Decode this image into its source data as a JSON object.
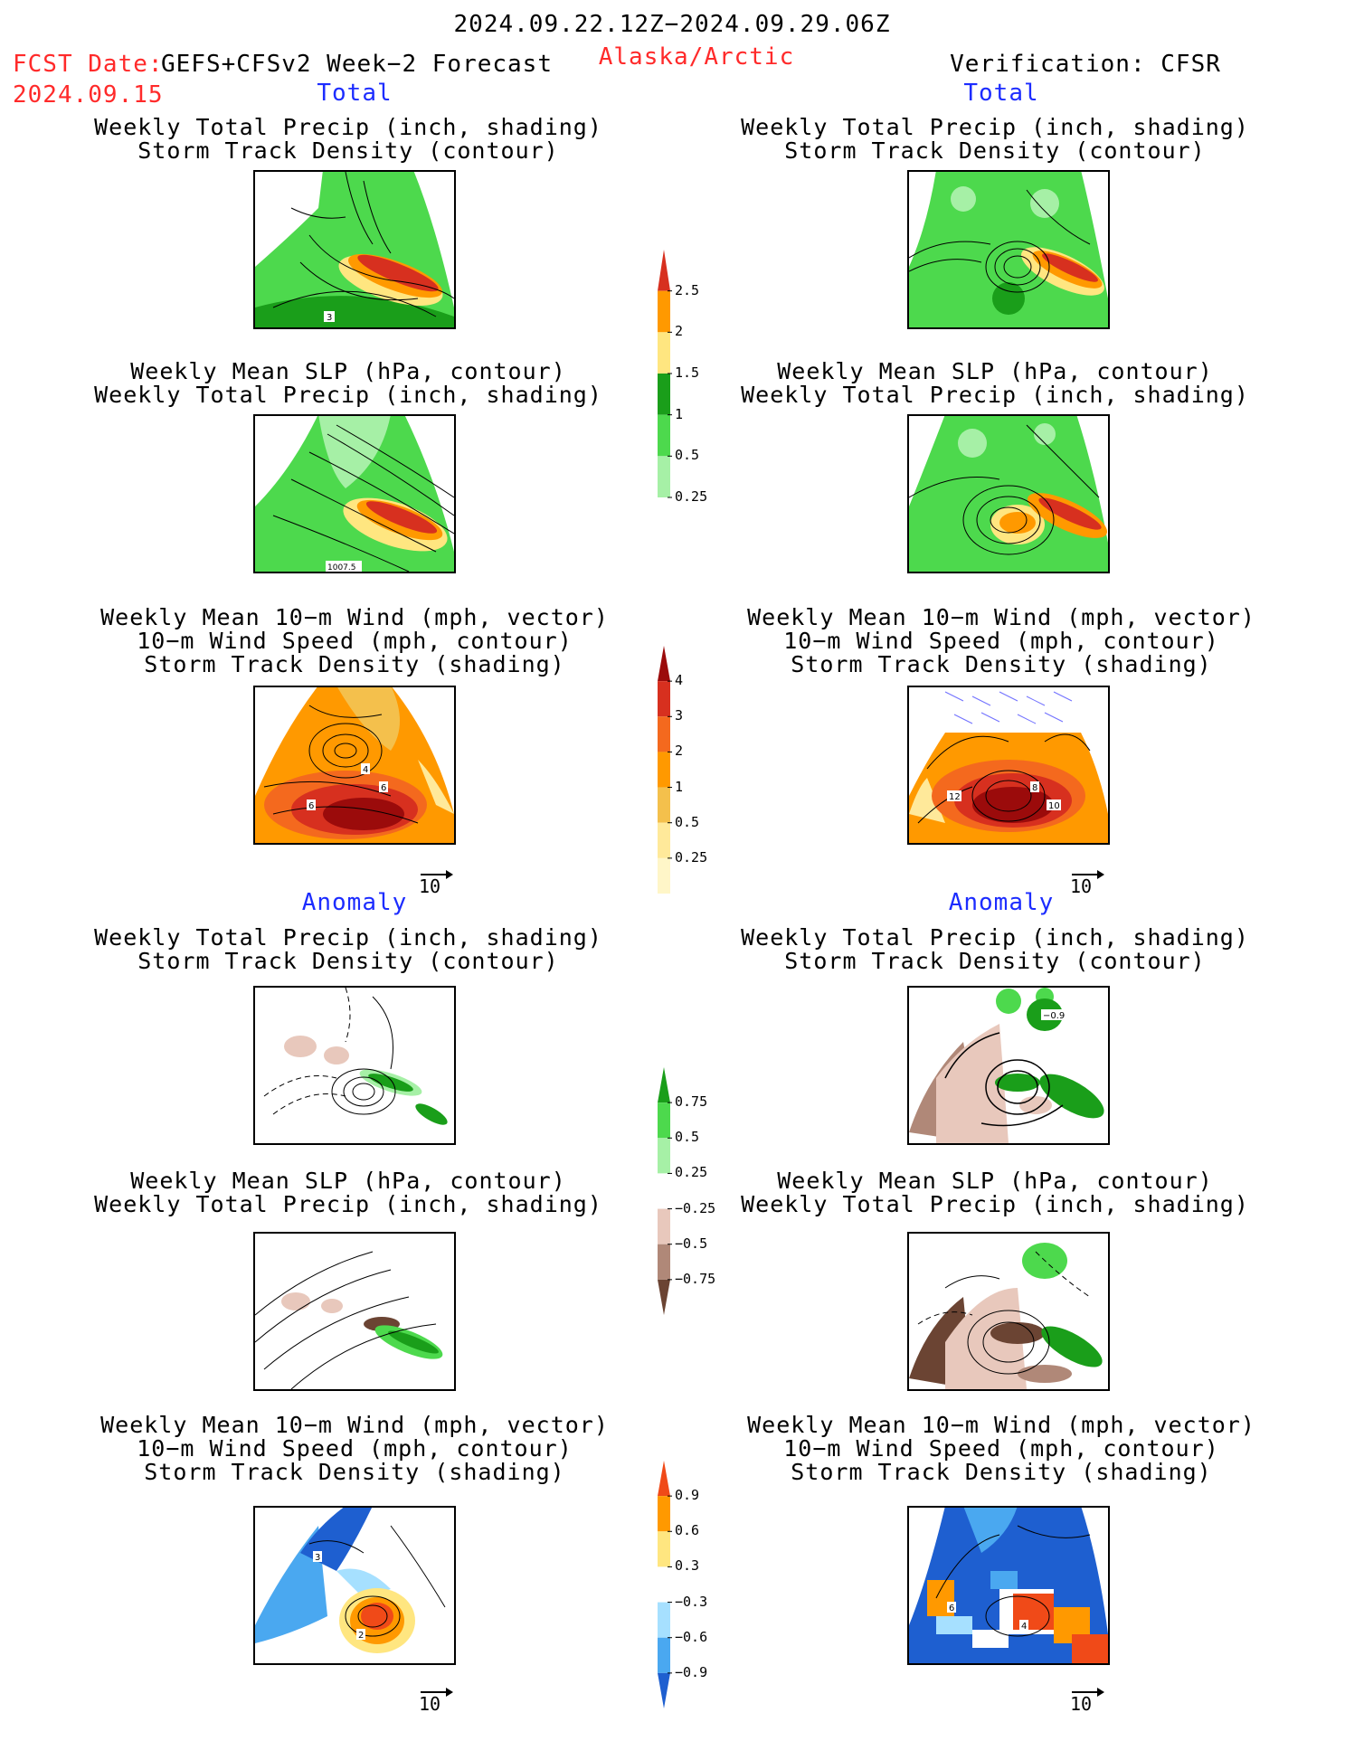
{
  "header": {
    "date_range": "2024.09.22.12Z−2024.09.29.06Z",
    "fcst_label": "FCST Date:",
    "fcst_model": "GEFS+CFSv2 Week−2 Forecast",
    "fcst_date": "2024.09.15",
    "region": "Alaska/Arctic",
    "verification": "Verification: CFSR"
  },
  "sections": {
    "total_left": "Total",
    "total_right": "Total",
    "anomaly_left": "Anomaly",
    "anomaly_right": "Anomaly"
  },
  "panel_titles": {
    "precip_track": [
      "Weekly Total Precip (inch, shading)",
      "Storm Track Density (contour)"
    ],
    "slp_precip": [
      "Weekly Mean SLP (hPa, contour)",
      "Weekly Total Precip (inch, shading)"
    ],
    "wind_track": [
      "Weekly Mean 10−m Wind (mph, vector)",
      "10−m Wind Speed (mph, contour)",
      "Storm Track Density (shading)"
    ]
  },
  "vector_reference": "10",
  "colorbars": {
    "precip_total": {
      "levels": [
        "2.5",
        "2",
        "1.5",
        "1",
        "0.5",
        "0.25"
      ],
      "colors": [
        "#d7301f",
        "#ff9900",
        "#ffe680",
        "#1a9e1a",
        "#4dd94d",
        "#a6f0a6"
      ]
    },
    "track_total": {
      "levels": [
        "4",
        "3",
        "2",
        "1",
        "0.5",
        "0.25"
      ],
      "colors": [
        "#9b0b0b",
        "#d7301f",
        "#f4691e",
        "#ff9900",
        "#f4c04c",
        "#ffe99a",
        "#fff6c8"
      ]
    },
    "precip_anom": {
      "levels": [
        "0.75",
        "0.5",
        "0.25",
        "−0.25",
        "−0.5",
        "−0.75"
      ],
      "colors": [
        "#1a9e1a",
        "#4dd94d",
        "#a6f0a6",
        "#ffffff",
        "#e8c8bc",
        "#b08878",
        "#6b4433"
      ]
    },
    "track_anom": {
      "levels": [
        "0.9",
        "0.6",
        "0.3",
        "−0.3",
        "−0.6",
        "−0.9"
      ],
      "colors": [
        "#f04a18",
        "#ff9900",
        "#ffe680",
        "#ffffff",
        "#a6e0ff",
        "#4aa8f0",
        "#1e5fd0"
      ]
    }
  },
  "panel_labels": {
    "fcst_precip_track": "3",
    "fcst_slp": "1007.5",
    "fcst_wind": [
      "6",
      "4",
      "6"
    ],
    "obs_wind": [
      "12",
      "8",
      "10"
    ],
    "obs_anom_precip": "−0.9",
    "fcst_anom_wind": [
      "3",
      "2"
    ],
    "obs_anom_wind": [
      "6",
      "4"
    ]
  },
  "chart_data": [
    {
      "type": "heatmap",
      "title": "Weekly Total Precip (inch, shading) / Storm Track Density (contour)",
      "panel": "forecast total",
      "legend_levels": [
        0.25,
        0.5,
        1,
        1.5,
        2,
        2.5
      ],
      "contour_labels": [
        "3"
      ]
    },
    {
      "type": "heatmap",
      "title": "Weekly Total Precip (inch, shading) / Storm Track Density (contour)",
      "panel": "verification total",
      "legend_levels": [
        0.25,
        0.5,
        1,
        1.5,
        2,
        2.5
      ]
    },
    {
      "type": "heatmap",
      "title": "Weekly Mean SLP (hPa, contour) / Weekly Total Precip (inch, shading)",
      "panel": "forecast total",
      "legend_levels": [
        0.25,
        0.5,
        1,
        1.5,
        2,
        2.5
      ],
      "contour_labels": [
        "1007.5"
      ]
    },
    {
      "type": "heatmap",
      "title": "Weekly Mean SLP (hPa, contour) / Weekly Total Precip (inch, shading)",
      "panel": "verification total",
      "legend_levels": [
        0.25,
        0.5,
        1,
        1.5,
        2,
        2.5
      ]
    },
    {
      "type": "heatmap",
      "title": "Weekly Mean 10−m Wind (mph, vector) / 10−m Wind Speed (mph, contour) / Storm Track Density (shading)",
      "panel": "forecast total",
      "legend_levels": [
        0.25,
        0.5,
        1,
        2,
        3,
        4
      ],
      "contour_labels": [
        "6",
        "4",
        "6"
      ]
    },
    {
      "type": "heatmap",
      "title": "Weekly Mean 10−m Wind (mph, vector) / 10−m Wind Speed (mph, contour) / Storm Track Density (shading)",
      "panel": "verification total",
      "legend_levels": [
        0.25,
        0.5,
        1,
        2,
        3,
        4
      ],
      "contour_labels": [
        "12",
        "8",
        "10"
      ]
    },
    {
      "type": "heatmap",
      "title": "Weekly Total Precip (inch, shading) / Storm Track Density (contour)",
      "panel": "forecast anomaly",
      "legend_levels": [
        -0.75,
        -0.5,
        -0.25,
        0.25,
        0.5,
        0.75
      ]
    },
    {
      "type": "heatmap",
      "title": "Weekly Total Precip (inch, shading) / Storm Track Density (contour)",
      "panel": "verification anomaly",
      "legend_levels": [
        -0.75,
        -0.5,
        -0.25,
        0.25,
        0.5,
        0.75
      ],
      "contour_labels": [
        "−0.9"
      ]
    },
    {
      "type": "heatmap",
      "title": "Weekly Mean SLP (hPa, contour) / Weekly Total Precip (inch, shading)",
      "panel": "forecast anomaly",
      "legend_levels": [
        -0.75,
        -0.5,
        -0.25,
        0.25,
        0.5,
        0.75
      ]
    },
    {
      "type": "heatmap",
      "title": "Weekly Mean SLP (hPa, contour) / Weekly Total Precip (inch, shading)",
      "panel": "verification anomaly",
      "legend_levels": [
        -0.75,
        -0.5,
        -0.25,
        0.25,
        0.5,
        0.75
      ]
    },
    {
      "type": "heatmap",
      "title": "Weekly Mean 10−m Wind (mph, vector) / 10−m Wind Speed (mph, contour) / Storm Track Density (shading)",
      "panel": "forecast anomaly",
      "legend_levels": [
        -0.9,
        -0.6,
        -0.3,
        0.3,
        0.6,
        0.9
      ],
      "contour_labels": [
        "3",
        "2"
      ]
    },
    {
      "type": "heatmap",
      "title": "Weekly Mean 10−m Wind (mph, vector) / 10−m Wind Speed (mph, contour) / Storm Track Density (shading)",
      "panel": "verification anomaly",
      "legend_levels": [
        -0.9,
        -0.6,
        -0.3,
        0.3,
        0.6,
        0.9
      ],
      "contour_labels": [
        "6",
        "4"
      ]
    }
  ]
}
